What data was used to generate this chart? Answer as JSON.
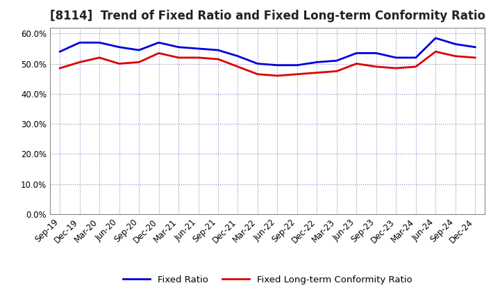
{
  "title": "[8114]  Trend of Fixed Ratio and Fixed Long-term Conformity Ratio",
  "x_labels": [
    "Sep-19",
    "Dec-19",
    "Mar-20",
    "Jun-20",
    "Sep-20",
    "Dec-20",
    "Mar-21",
    "Jun-21",
    "Sep-21",
    "Dec-21",
    "Mar-22",
    "Jun-22",
    "Sep-22",
    "Dec-22",
    "Mar-23",
    "Jun-23",
    "Sep-23",
    "Dec-23",
    "Mar-24",
    "Jun-24",
    "Sep-24",
    "Dec-24"
  ],
  "fixed_ratio": [
    54.0,
    57.0,
    57.0,
    55.5,
    54.5,
    57.0,
    55.5,
    55.0,
    54.5,
    52.5,
    50.0,
    49.5,
    49.5,
    50.5,
    51.0,
    53.5,
    53.5,
    52.0,
    52.0,
    58.5,
    56.5,
    55.5
  ],
  "fixed_lt_ratio": [
    48.5,
    50.5,
    52.0,
    50.0,
    50.5,
    53.5,
    52.0,
    52.0,
    51.5,
    49.0,
    46.5,
    46.0,
    46.5,
    47.0,
    47.5,
    50.0,
    49.0,
    48.5,
    49.0,
    54.0,
    52.5,
    52.0
  ],
  "fixed_ratio_color": "#0000dd",
  "fixed_lt_ratio_color": "#dd0000",
  "ylim": [
    0,
    62
  ],
  "yticks": [
    0,
    10,
    20,
    30,
    40,
    50,
    60
  ],
  "background_color": "#ffffff",
  "plot_bg_color": "#ffffff",
  "grid_color": "#555599",
  "legend_labels": [
    "Fixed Ratio",
    "Fixed Long-term Conformity Ratio"
  ],
  "title_fontsize": 12,
  "axis_fontsize": 8.5
}
